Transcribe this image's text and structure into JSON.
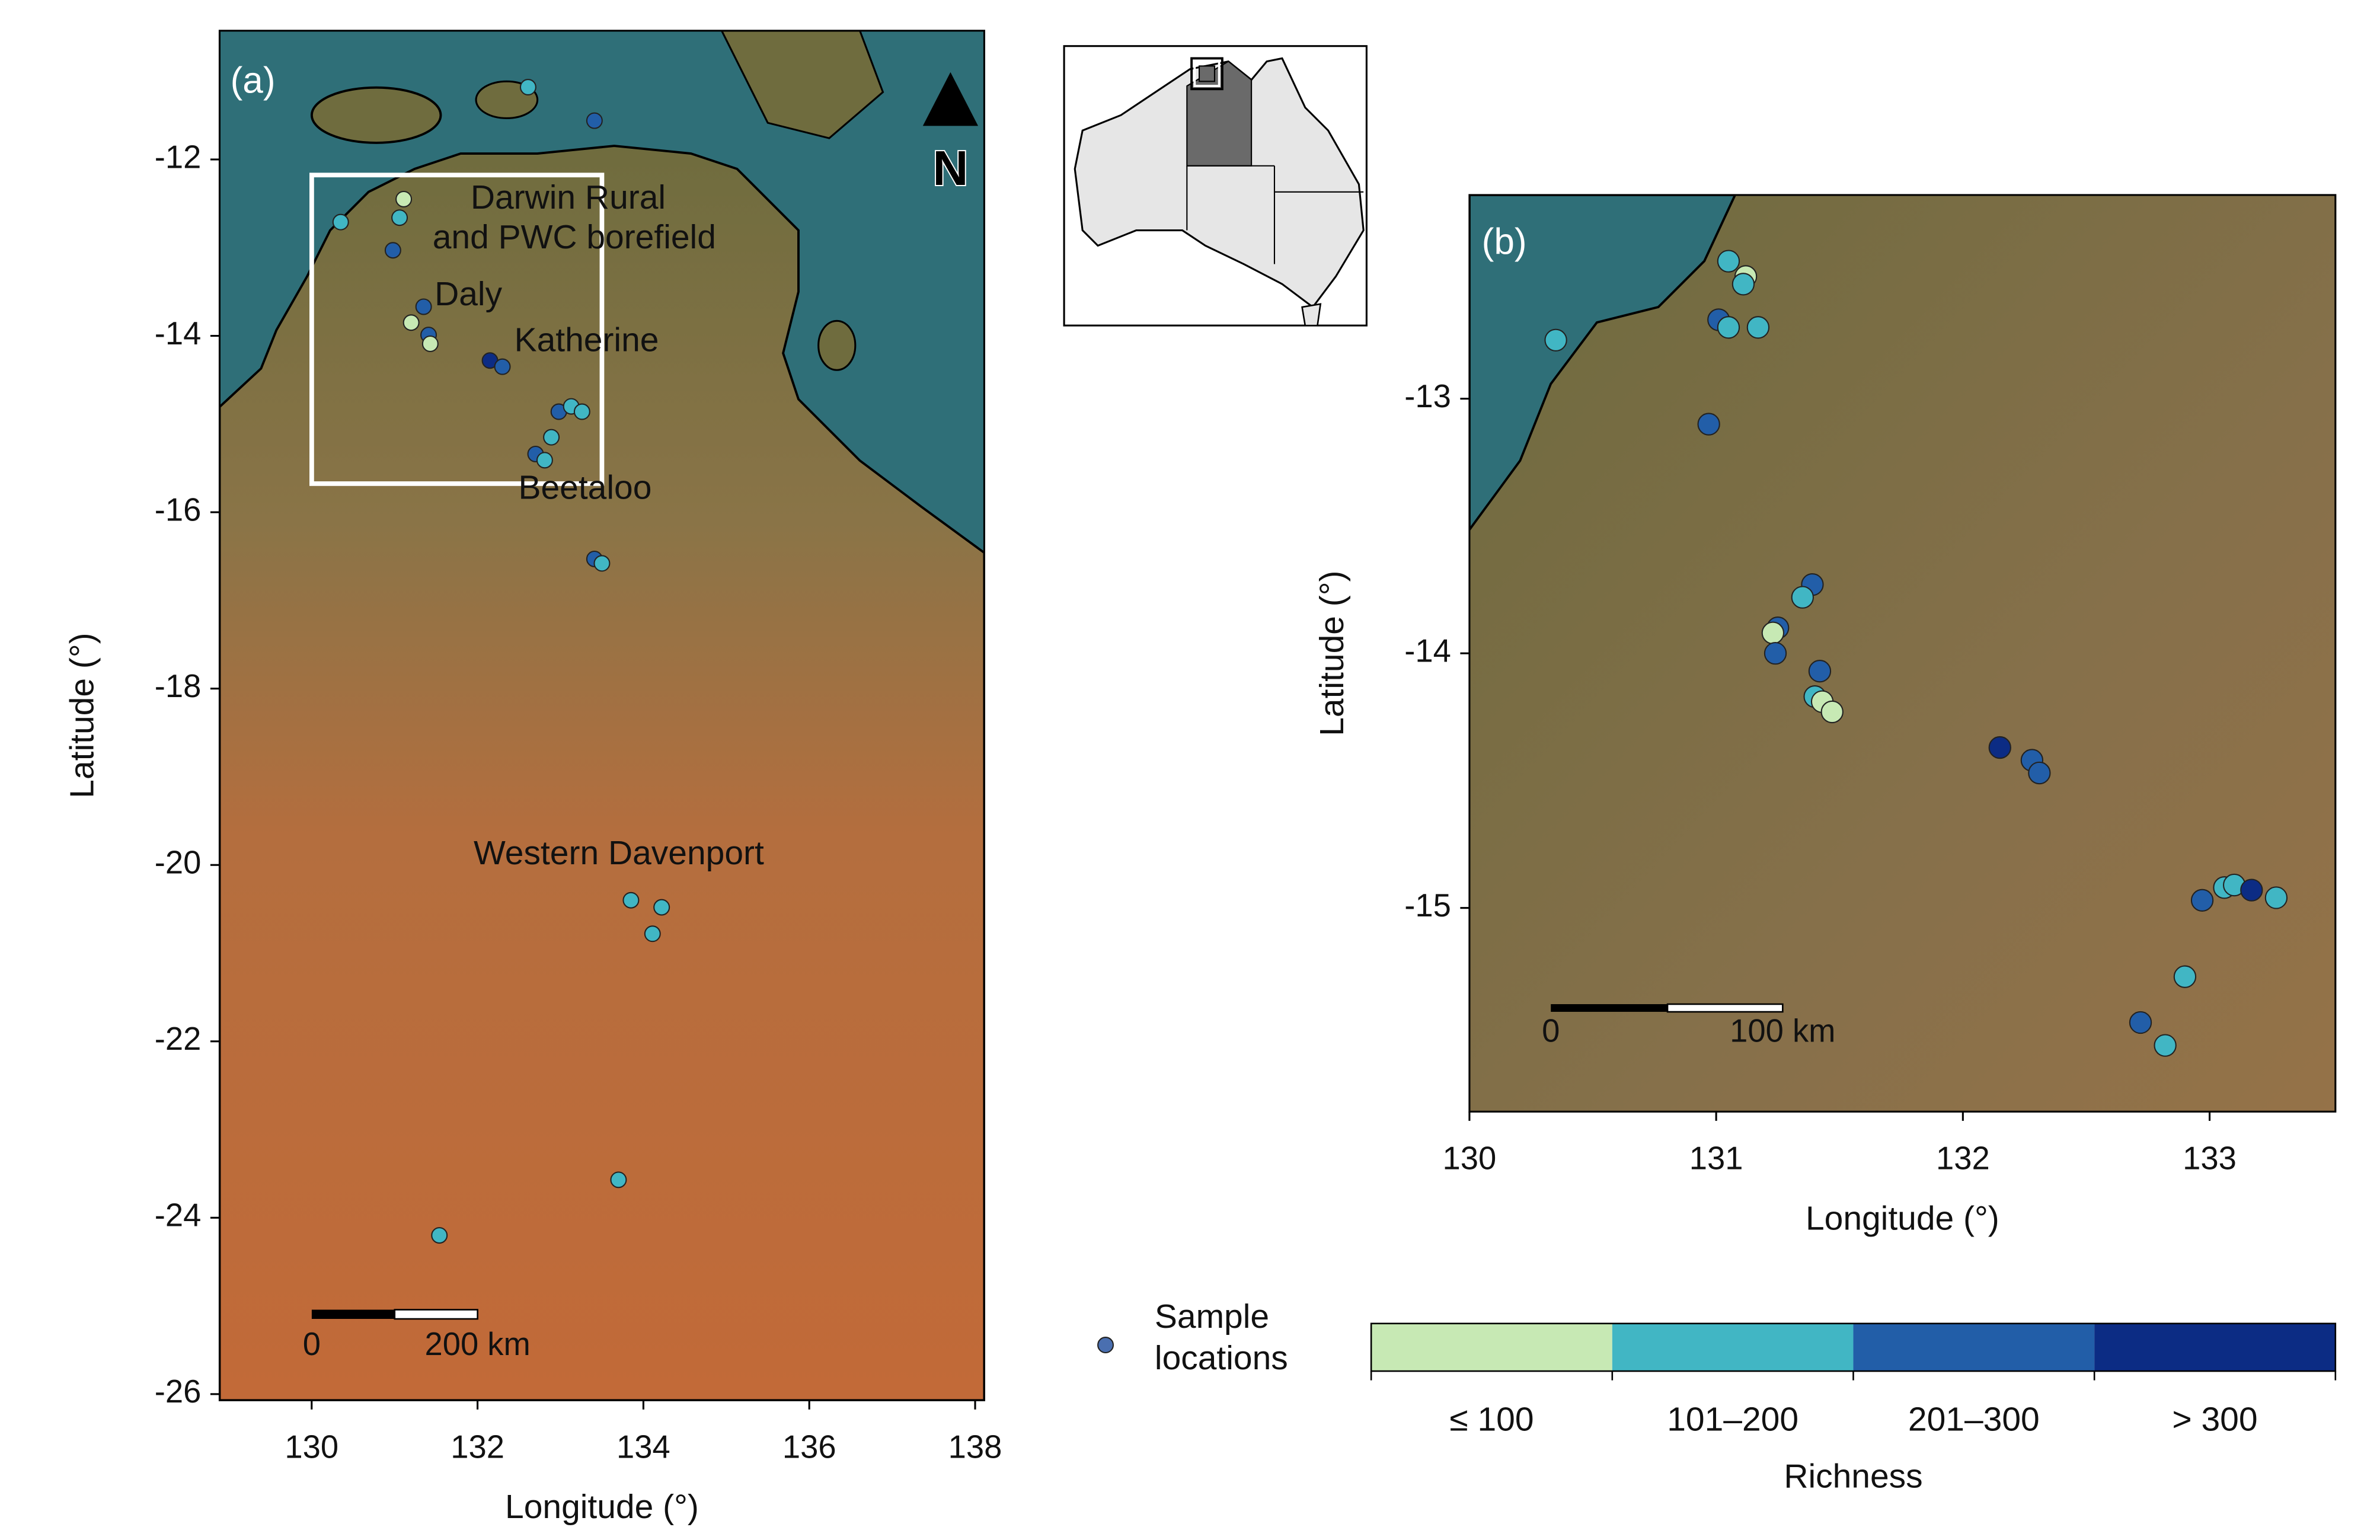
{
  "panels": [
    {
      "label": "(a)",
      "xlabel": "Longitude (°)",
      "ylabel": "Latitude (°)",
      "xlim": [
        128.89,
        138.11
      ],
      "ylim": [
        -26.07,
        -10.54
      ],
      "xticks": [
        130,
        132,
        134,
        136,
        138
      ],
      "yticks": [
        -12,
        -14,
        -16,
        -18,
        -20,
        -22,
        -24,
        -26
      ],
      "north": "N",
      "scale_bar": [
        "0",
        "200 km"
      ],
      "annotations": [
        "Darwin Rural",
        "and PWC borefield",
        "Daly",
        "Katherine",
        "Beetaloo",
        "Western Davenport"
      ],
      "points": [
        {
          "lon": 132.61,
          "lat": -11.18,
          "class": 1
        },
        {
          "lon": 133.41,
          "lat": -11.56,
          "class": 2
        },
        {
          "lon": 130.35,
          "lat": -12.71,
          "class": 1
        },
        {
          "lon": 131.11,
          "lat": -12.45,
          "class": 0
        },
        {
          "lon": 131.06,
          "lat": -12.66,
          "class": 1
        },
        {
          "lon": 130.98,
          "lat": -13.03,
          "class": 2
        },
        {
          "lon": 131.35,
          "lat": -13.67,
          "class": 2
        },
        {
          "lon": 131.2,
          "lat": -13.85,
          "class": 0
        },
        {
          "lon": 131.41,
          "lat": -13.99,
          "class": 2
        },
        {
          "lon": 131.43,
          "lat": -14.09,
          "class": 0
        },
        {
          "lon": 132.15,
          "lat": -14.28,
          "class": 3
        },
        {
          "lon": 132.3,
          "lat": -14.35,
          "class": 2
        },
        {
          "lon": 132.98,
          "lat": -14.86,
          "class": 2
        },
        {
          "lon": 133.13,
          "lat": -14.8,
          "class": 1
        },
        {
          "lon": 133.26,
          "lat": -14.86,
          "class": 1
        },
        {
          "lon": 132.89,
          "lat": -15.15,
          "class": 1
        },
        {
          "lon": 132.7,
          "lat": -15.34,
          "class": 2
        },
        {
          "lon": 132.81,
          "lat": -15.41,
          "class": 1
        },
        {
          "lon": 133.41,
          "lat": -16.53,
          "class": 2
        },
        {
          "lon": 133.5,
          "lat": -16.58,
          "class": 1
        },
        {
          "lon": 133.85,
          "lat": -20.4,
          "class": 1
        },
        {
          "lon": 134.22,
          "lat": -20.48,
          "class": 1
        },
        {
          "lon": 134.11,
          "lat": -20.78,
          "class": 1
        },
        {
          "lon": 133.7,
          "lat": -23.57,
          "class": 1
        },
        {
          "lon": 131.54,
          "lat": -24.2,
          "class": 1
        }
      ]
    },
    {
      "label": "(b)",
      "xlabel": "Longitude (°)",
      "ylabel": "Latitude (°)",
      "xlim": [
        130,
        133.51
      ],
      "ylim": [
        -15.8,
        -12.2
      ],
      "xticks": [
        130,
        131,
        132,
        133
      ],
      "yticks": [
        -13,
        -14,
        -15
      ],
      "scale_bar": [
        "0",
        "100 km"
      ],
      "points": [
        {
          "lon": 130.35,
          "lat": -12.77,
          "class": 1
        },
        {
          "lon": 131.05,
          "lat": -12.46,
          "class": 1
        },
        {
          "lon": 131.12,
          "lat": -12.52,
          "class": 0
        },
        {
          "lon": 131.11,
          "lat": -12.55,
          "class": 1
        },
        {
          "lon": 131.01,
          "lat": -12.69,
          "class": 2
        },
        {
          "lon": 131.05,
          "lat": -12.72,
          "class": 1
        },
        {
          "lon": 131.17,
          "lat": -12.72,
          "class": 1
        },
        {
          "lon": 130.97,
          "lat": -13.1,
          "class": 2
        },
        {
          "lon": 131.39,
          "lat": -13.73,
          "class": 2
        },
        {
          "lon": 131.35,
          "lat": -13.78,
          "class": 1
        },
        {
          "lon": 131.25,
          "lat": -13.9,
          "class": 2
        },
        {
          "lon": 131.23,
          "lat": -13.92,
          "class": 0
        },
        {
          "lon": 131.24,
          "lat": -14.0,
          "class": 2
        },
        {
          "lon": 131.42,
          "lat": -14.07,
          "class": 2
        },
        {
          "lon": 131.4,
          "lat": -14.17,
          "class": 1
        },
        {
          "lon": 131.43,
          "lat": -14.19,
          "class": 0
        },
        {
          "lon": 131.47,
          "lat": -14.23,
          "class": 0
        },
        {
          "lon": 132.15,
          "lat": -14.37,
          "class": 3
        },
        {
          "lon": 132.28,
          "lat": -14.42,
          "class": 2
        },
        {
          "lon": 132.31,
          "lat": -14.47,
          "class": 2
        },
        {
          "lon": 132.97,
          "lat": -14.97,
          "class": 2
        },
        {
          "lon": 133.06,
          "lat": -14.92,
          "class": 1
        },
        {
          "lon": 133.1,
          "lat": -14.91,
          "class": 1
        },
        {
          "lon": 133.17,
          "lat": -14.93,
          "class": 3
        },
        {
          "lon": 133.27,
          "lat": -14.96,
          "class": 1
        },
        {
          "lon": 132.9,
          "lat": -15.27,
          "class": 1
        },
        {
          "lon": 132.72,
          "lat": -15.45,
          "class": 2
        },
        {
          "lon": 132.82,
          "lat": -15.54,
          "class": 1
        }
      ]
    }
  ],
  "legend": {
    "marker": [
      "Sample",
      "locations"
    ],
    "marker_color": "#4a6fb0",
    "title": "Richness",
    "classes": [
      {
        "label": "≤ 100",
        "color": "#c7e9b4"
      },
      {
        "label": "101–200",
        "color": "#41b6c4"
      },
      {
        "label": "201–300",
        "color": "#225ea8"
      },
      {
        "label": "> 300",
        "color": "#0c2c84"
      }
    ]
  }
}
